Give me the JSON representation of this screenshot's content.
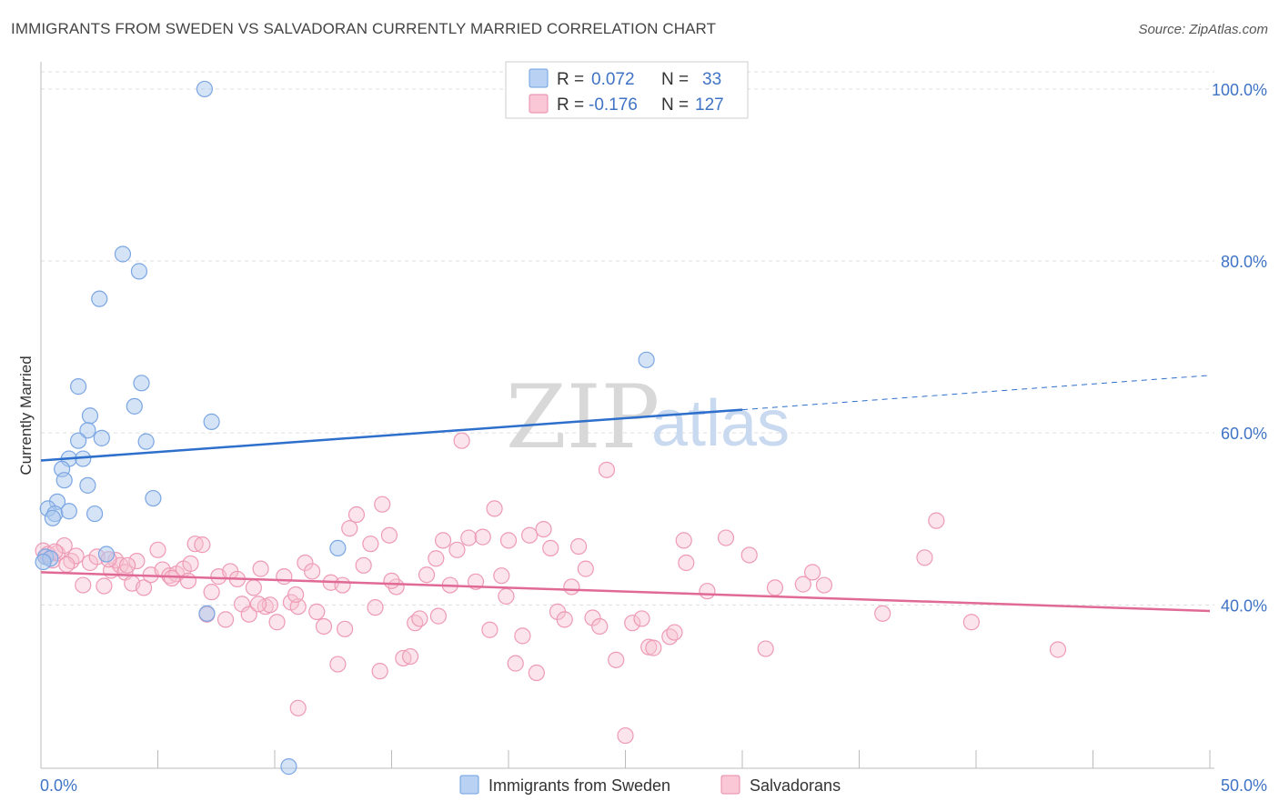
{
  "header": {
    "title": "IMMIGRANTS FROM SWEDEN VS SALVADORAN CURRENTLY MARRIED CORRELATION CHART",
    "source": "Source: ZipAtlas.com"
  },
  "watermark": {
    "zip": "ZIP",
    "atlas": "atlas"
  },
  "legend": {
    "r_label": "R =",
    "n_label": "N =",
    "rows": [
      {
        "r": "0.072",
        "n": "33",
        "color": "#6f9fe0",
        "fill": "#b9d2f4"
      },
      {
        "r": "-0.176",
        "n": "127",
        "color": "#e88aa8",
        "fill": "#f9c7d6"
      }
    ]
  },
  "colors": {
    "sweden_stroke": "#7ba6e3",
    "sweden_fill": "#aac7ee",
    "sweden_line": "#2e6fcc",
    "salv_stroke": "#ee9ab5",
    "salv_fill": "#f7c3d3",
    "salv_line": "#e06a95",
    "grid": "#dddddd",
    "axis_text": "#3f73c5"
  },
  "chart_data": {
    "type": "scatter",
    "title": "IMMIGRANTS FROM SWEDEN VS SALVADORAN CURRENTLY MARRIED CORRELATION CHART",
    "xlabel": "",
    "ylabel": "Currently Married",
    "xlim": [
      0,
      50
    ],
    "ylim": [
      21,
      102
    ],
    "x_tick_labels": [
      "0.0%",
      "50.0%"
    ],
    "y_ticks": [
      40,
      60,
      80,
      100
    ],
    "y_tick_labels": [
      "40.0%",
      "60.0%",
      "80.0%",
      "100.0%"
    ],
    "legend_position": "top-center",
    "bottom_legend": [
      "Immigrants from Sweden",
      "Salvadorans"
    ],
    "series": [
      {
        "name": "Immigrants from Sweden",
        "trend": {
          "x_start": 0,
          "y_start": 56.8,
          "x_end_solid": 30,
          "y_end_solid": 62.7,
          "x_end_dashed": 50,
          "y_end_dashed": 66.7
        },
        "points": [
          [
            7.0,
            100.0
          ],
          [
            3.5,
            80.8
          ],
          [
            4.2,
            78.8
          ],
          [
            2.5,
            75.6
          ],
          [
            25.9,
            68.5
          ],
          [
            1.6,
            65.4
          ],
          [
            4.3,
            65.8
          ],
          [
            4.0,
            63.1
          ],
          [
            2.1,
            62.0
          ],
          [
            7.3,
            61.3
          ],
          [
            2.0,
            60.3
          ],
          [
            2.6,
            59.4
          ],
          [
            1.6,
            59.1
          ],
          [
            4.5,
            59.0
          ],
          [
            1.2,
            57.0
          ],
          [
            1.8,
            57.0
          ],
          [
            0.9,
            55.8
          ],
          [
            1.0,
            54.5
          ],
          [
            2.0,
            53.9
          ],
          [
            4.8,
            52.4
          ],
          [
            0.7,
            52.0
          ],
          [
            0.3,
            51.2
          ],
          [
            0.6,
            50.6
          ],
          [
            1.2,
            50.9
          ],
          [
            0.5,
            50.1
          ],
          [
            2.3,
            50.6
          ],
          [
            12.7,
            46.6
          ],
          [
            0.2,
            45.6
          ],
          [
            2.8,
            45.9
          ],
          [
            0.4,
            45.4
          ],
          [
            7.1,
            39.0
          ],
          [
            10.6,
            21.2
          ],
          [
            0.1,
            45.0
          ]
        ]
      },
      {
        "name": "Salvadorans",
        "trend": {
          "x_start": 0,
          "y_start": 43.8,
          "x_end": 50,
          "y_end": 39.3
        },
        "points": [
          [
            0.1,
            46.3
          ],
          [
            0.2,
            45.6
          ],
          [
            0.5,
            45.2
          ],
          [
            0.7,
            46.0
          ],
          [
            1.0,
            46.9
          ],
          [
            1.3,
            45.1
          ],
          [
            1.5,
            45.7
          ],
          [
            1.8,
            42.3
          ],
          [
            2.1,
            44.9
          ],
          [
            2.4,
            45.6
          ],
          [
            2.7,
            42.2
          ],
          [
            3.0,
            44.0
          ],
          [
            3.2,
            45.2
          ],
          [
            3.4,
            44.6
          ],
          [
            3.6,
            43.8
          ],
          [
            3.9,
            42.5
          ],
          [
            4.1,
            45.1
          ],
          [
            4.4,
            42.0
          ],
          [
            4.7,
            43.5
          ],
          [
            5.0,
            46.4
          ],
          [
            5.2,
            44.1
          ],
          [
            5.5,
            43.4
          ],
          [
            5.8,
            43.6
          ],
          [
            6.1,
            44.2
          ],
          [
            6.4,
            44.8
          ],
          [
            6.6,
            47.1
          ],
          [
            6.9,
            47.0
          ],
          [
            7.1,
            38.9
          ],
          [
            7.3,
            41.5
          ],
          [
            7.6,
            43.3
          ],
          [
            7.9,
            38.3
          ],
          [
            8.1,
            43.9
          ],
          [
            8.4,
            43.0
          ],
          [
            8.6,
            40.1
          ],
          [
            8.9,
            38.9
          ],
          [
            9.1,
            42.0
          ],
          [
            9.4,
            44.2
          ],
          [
            9.6,
            39.8
          ],
          [
            9.8,
            40.0
          ],
          [
            10.1,
            38.0
          ],
          [
            10.4,
            43.3
          ],
          [
            10.7,
            40.3
          ],
          [
            11.0,
            39.8
          ],
          [
            11.3,
            44.9
          ],
          [
            11.6,
            43.9
          ],
          [
            11.8,
            39.2
          ],
          [
            12.1,
            37.5
          ],
          [
            12.4,
            42.6
          ],
          [
            12.7,
            33.1
          ],
          [
            13.0,
            37.2
          ],
          [
            13.2,
            48.9
          ],
          [
            13.5,
            50.5
          ],
          [
            13.8,
            44.6
          ],
          [
            14.1,
            47.1
          ],
          [
            14.3,
            39.7
          ],
          [
            14.6,
            51.7
          ],
          [
            14.9,
            48.1
          ],
          [
            15.2,
            42.1
          ],
          [
            15.5,
            33.8
          ],
          [
            15.8,
            34.0
          ],
          [
            16.0,
            37.9
          ],
          [
            16.2,
            38.4
          ],
          [
            16.5,
            43.5
          ],
          [
            16.9,
            45.4
          ],
          [
            17.2,
            47.5
          ],
          [
            17.5,
            42.3
          ],
          [
            17.8,
            46.4
          ],
          [
            18.0,
            59.1
          ],
          [
            18.3,
            47.8
          ],
          [
            18.6,
            42.7
          ],
          [
            18.9,
            47.9
          ],
          [
            19.2,
            37.1
          ],
          [
            19.4,
            51.2
          ],
          [
            19.7,
            43.4
          ],
          [
            20.0,
            47.5
          ],
          [
            20.3,
            33.2
          ],
          [
            20.6,
            36.4
          ],
          [
            20.9,
            48.1
          ],
          [
            21.2,
            32.1
          ],
          [
            21.5,
            48.8
          ],
          [
            21.8,
            46.6
          ],
          [
            22.1,
            39.2
          ],
          [
            22.4,
            38.3
          ],
          [
            22.7,
            42.1
          ],
          [
            23.0,
            46.8
          ],
          [
            23.3,
            44.2
          ],
          [
            23.6,
            38.5
          ],
          [
            23.9,
            37.5
          ],
          [
            24.2,
            55.7
          ],
          [
            24.6,
            33.6
          ],
          [
            25.0,
            24.8
          ],
          [
            25.3,
            37.9
          ],
          [
            25.7,
            38.4
          ],
          [
            26.0,
            35.1
          ],
          [
            26.2,
            35.0
          ],
          [
            26.9,
            36.3
          ],
          [
            27.1,
            36.8
          ],
          [
            27.5,
            47.5
          ],
          [
            27.6,
            44.9
          ],
          [
            28.5,
            41.6
          ],
          [
            29.3,
            47.8
          ],
          [
            30.3,
            45.8
          ],
          [
            31.0,
            34.9
          ],
          [
            31.4,
            42.0
          ],
          [
            32.6,
            42.4
          ],
          [
            33.0,
            43.8
          ],
          [
            33.5,
            42.3
          ],
          [
            36.0,
            39.0
          ],
          [
            37.8,
            45.5
          ],
          [
            38.3,
            49.8
          ],
          [
            39.8,
            38.0
          ],
          [
            43.5,
            34.8
          ],
          [
            0.3,
            45.9
          ],
          [
            0.6,
            46.2
          ],
          [
            1.1,
            44.7
          ],
          [
            2.9,
            45.3
          ],
          [
            3.7,
            44.6
          ],
          [
            5.6,
            43.1
          ],
          [
            6.3,
            42.8
          ],
          [
            9.3,
            40.1
          ],
          [
            10.9,
            41.2
          ],
          [
            12.9,
            42.3
          ],
          [
            15.0,
            42.8
          ],
          [
            17.0,
            38.7
          ],
          [
            19.9,
            41.0
          ],
          [
            11.0,
            28.0
          ],
          [
            14.5,
            32.3
          ]
        ]
      }
    ]
  }
}
